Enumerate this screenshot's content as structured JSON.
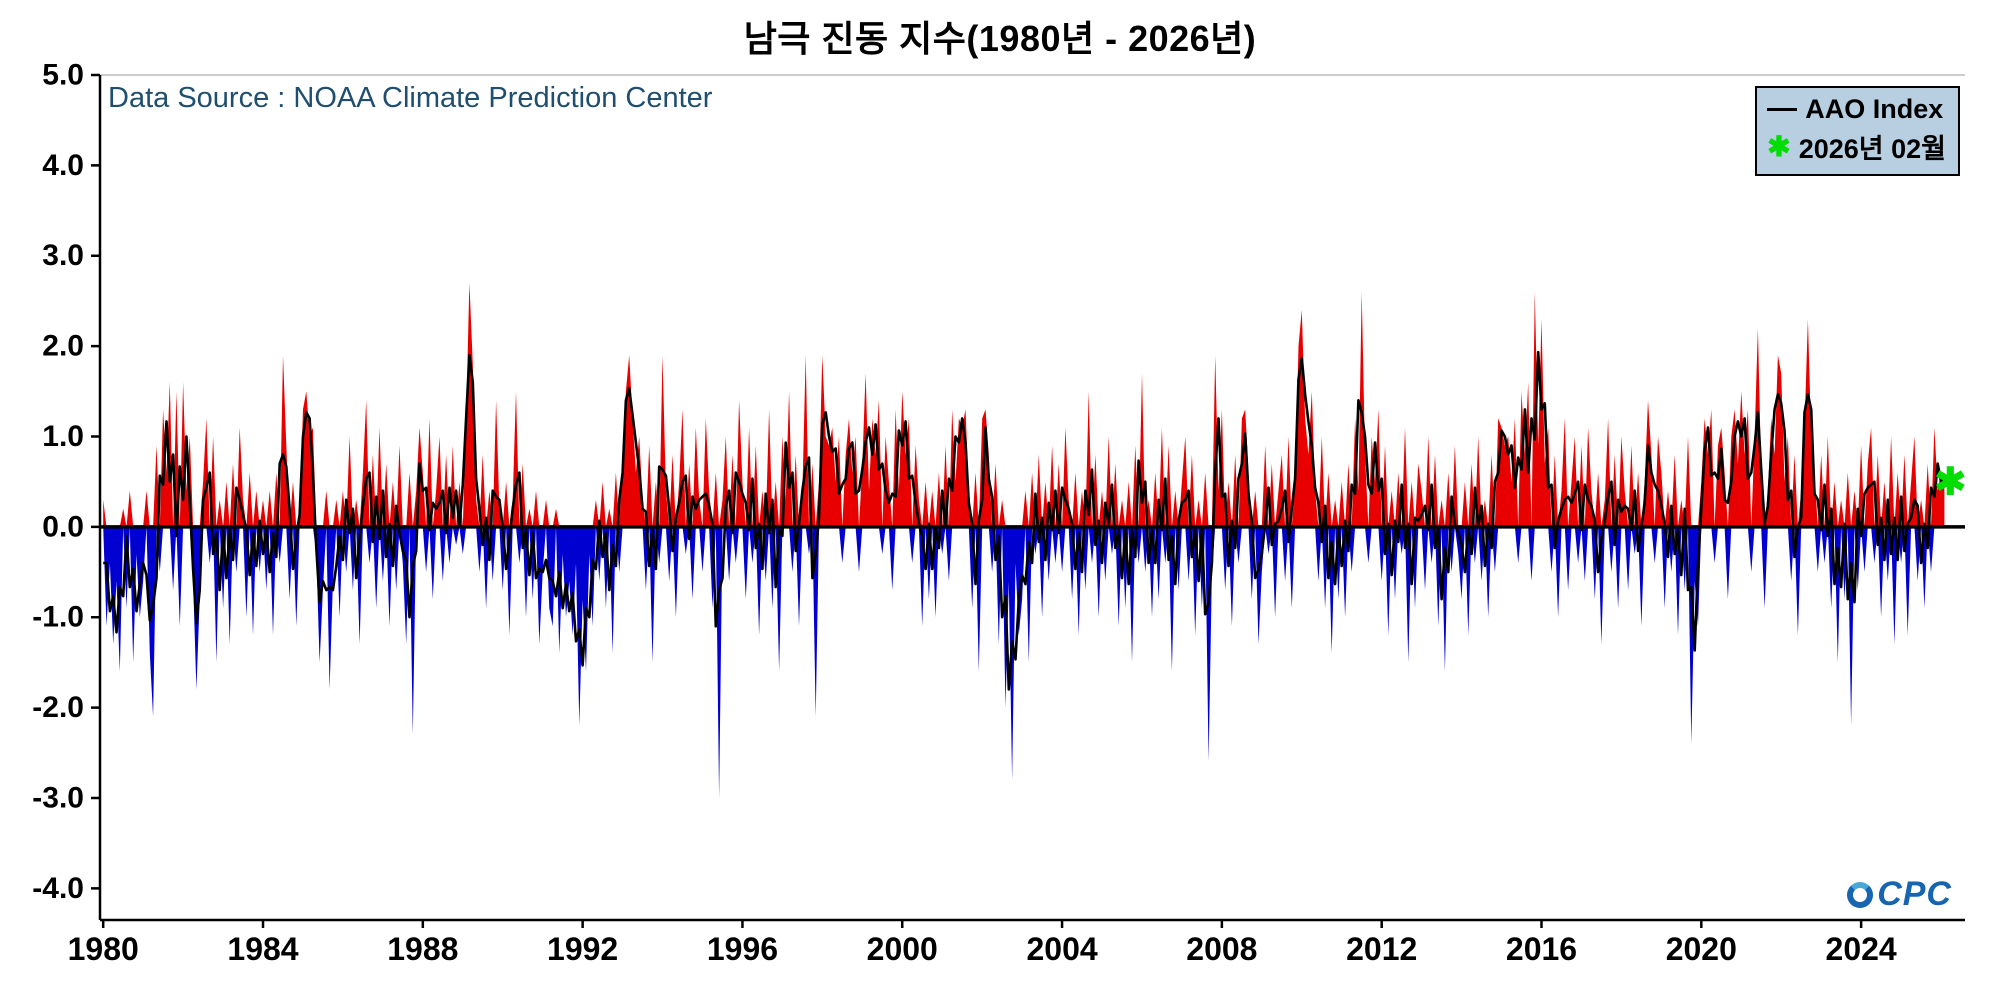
{
  "title": "남극 진동 지수(1980년 - 2026년)",
  "annotations": {
    "data_source": "Data Source : NOAA Climate Prediction Center"
  },
  "legend": {
    "background": "#b8cfe2",
    "items": [
      {
        "icon": "line-sample-icon",
        "label": "AAO Index",
        "color": "#000000"
      },
      {
        "icon": "asterisk-icon",
        "label": "2026년 02월",
        "color": "#00dd00"
      }
    ]
  },
  "logo": {
    "text": "CPC",
    "color": "#1565b0"
  },
  "chart_data": {
    "type": "area",
    "title": "남극 진동 지수(1980년 - 2026년)",
    "xlabel": "",
    "ylabel": "",
    "x_start_year": 1980,
    "x_start_month": 1,
    "frequency": "monthly",
    "xlim": [
      1979.92,
      2026.6
    ],
    "ylim": [
      -4.35,
      5.0
    ],
    "yticks": [
      5.0,
      4.0,
      3.0,
      2.0,
      1.0,
      0.0,
      -1.0,
      -2.0,
      -3.0,
      -4.0
    ],
    "ytick_labels": [
      "5.0",
      "4.0",
      "3.0",
      "2.0",
      "1.0",
      "0.0",
      "-1.0",
      "-2.0",
      "-3.0",
      "-4.0"
    ],
    "xticks": [
      1980,
      1984,
      1988,
      1992,
      1996,
      2000,
      2004,
      2008,
      2012,
      2016,
      2020,
      2024
    ],
    "xtick_labels": [
      "1980",
      "1984",
      "1988",
      "1992",
      "1996",
      "2000",
      "2004",
      "2008",
      "2012",
      "2016",
      "2020",
      "2024"
    ],
    "positive_color": "#e80000",
    "negative_color": "#0000d0",
    "line_color": "#000000",
    "zero_line_color": "#000000",
    "smoothing_window": 3,
    "series_name": "AAO Index",
    "marker": {
      "label": "2026년 02월",
      "value": 0.5,
      "color": "#00dd00"
    },
    "values": [
      0.3,
      -1.1,
      -0.4,
      -1.3,
      -0.6,
      -1.6,
      0.2,
      -0.9,
      0.4,
      -1.5,
      -0.3,
      -1.0,
      -0.6,
      0.4,
      -1.4,
      -2.1,
      0.9,
      -0.5,
      1.3,
      0.6,
      1.6,
      -0.7,
      1.5,
      -1.1,
      1.6,
      0.4,
      1.0,
      -0.6,
      -1.8,
      -0.8,
      0.5,
      1.2,
      -0.4,
      1.0,
      -1.5,
      0.3,
      -0.9,
      0.5,
      -1.3,
      0.7,
      -0.5,
      1.1,
      0.3,
      -1.0,
      0.6,
      -1.2,
      0.4,
      -0.5,
      0.3,
      -0.7,
      0.4,
      -1.2,
      0.6,
      -0.4,
      1.9,
      0.9,
      -0.8,
      0.5,
      -1.1,
      0.2,
      1.3,
      1.5,
      1.0,
      1.1,
      -0.3,
      -1.5,
      -0.7,
      0.4,
      -1.8,
      -0.6,
      0.3,
      -1.0,
      0.4,
      -0.5,
      1.0,
      -0.7,
      0.3,
      -1.3,
      0.6,
      1.4,
      -0.4,
      0.8,
      -0.9,
      1.1,
      -0.6,
      0.7,
      -1.1,
      0.5,
      -0.7,
      0.9,
      -0.4,
      -1.3,
      0.6,
      -2.3,
      0.4,
      1.1,
      0.6,
      -0.5,
      1.2,
      -0.8,
      0.4,
      1.0,
      -0.6,
      0.8,
      -0.4,
      0.9,
      -0.2,
      0.5,
      -0.3,
      1.2,
      2.7,
      1.8,
      0.3,
      -0.5,
      0.8,
      -0.9,
      0.4,
      -0.6,
      1.4,
      0.2,
      -0.7,
      0.5,
      -1.2,
      0.3,
      1.5,
      -0.4,
      0.7,
      -1.0,
      0.2,
      -0.8,
      0.4,
      -1.3,
      -0.5,
      0.3,
      -0.9,
      -1.1,
      0.2,
      -1.4,
      -0.3,
      -1.0,
      -0.6,
      -1.2,
      -0.4,
      -2.2,
      -0.8,
      -1.6,
      -0.3,
      -1.1,
      0.3,
      -0.6,
      0.5,
      -0.9,
      0.2,
      -1.4,
      0.6,
      -0.5,
      0.8,
      1.5,
      1.9,
      1.2,
      0.6,
      1.0,
      0.3,
      -0.7,
      0.9,
      -1.5,
      0.5,
      -0.4,
      1.9,
      0.4,
      -0.6,
      0.8,
      -1.0,
      0.5,
      1.3,
      -0.3,
      0.7,
      -0.8,
      1.1,
      0.3,
      -0.5,
      1.2,
      0.4,
      -0.9,
      0.6,
      -3.0,
      0.3,
      1.0,
      -0.6,
      0.8,
      -0.4,
      1.4,
      0.5,
      -0.8,
      1.1,
      -0.4,
      0.9,
      -1.2,
      0.4,
      -0.6,
      1.3,
      -0.9,
      0.5,
      -1.6,
      1.0,
      0.3,
      1.5,
      -0.5,
      0.8,
      -1.1,
      0.4,
      1.9,
      -0.3,
      0.7,
      -2.1,
      0.5,
      1.9,
      1.0,
      0.9,
      1.1,
      0.5,
      1.0,
      -0.4,
      0.8,
      1.2,
      0.6,
      1.0,
      -0.5,
      0.7,
      1.7,
      0.4,
      1.2,
      0.8,
      1.4,
      -0.3,
      1.0,
      0.5,
      -0.7,
      1.3,
      0.4,
      1.5,
      0.8,
      1.2,
      -0.4,
      0.9,
      0.3,
      -1.1,
      0.5,
      -0.8,
      0.4,
      -1.0,
      0.6,
      -0.3,
      0.9,
      -0.6,
      1.3,
      0.5,
      1.2,
      1.1,
      1.3,
      0.4,
      -0.9,
      0.6,
      -1.6,
      1.2,
      1.3,
      0.8,
      -0.5,
      0.7,
      -1.3,
      0.3,
      -2.0,
      -0.6,
      -2.8,
      -0.4,
      -1.2,
      -0.8,
      0.4,
      -1.5,
      0.6,
      -0.3,
      0.8,
      -1.0,
      0.5,
      -0.6,
      0.9,
      -0.4,
      0.7,
      -0.5,
      1.1,
      0.3,
      -0.8,
      0.6,
      -1.2,
      0.4,
      -0.7,
      1.5,
      -0.4,
      0.8,
      -1.0,
      0.4,
      -0.6,
      1.0,
      -0.3,
      0.7,
      -1.1,
      0.3,
      -0.9,
      0.5,
      -1.5,
      0.9,
      -0.4,
      1.7,
      -0.5,
      0.3,
      -1.0,
      0.6,
      -0.8,
      1.1,
      -0.4,
      0.9,
      -1.6,
      0.4,
      -0.7,
      0.5,
      1.0,
      -0.6,
      0.8,
      -1.2,
      0.3,
      -0.9,
      0.6,
      -2.6,
      -0.5,
      1.9,
      0.4,
      1.3,
      -0.7,
      0.5,
      -1.1,
      0.8,
      -0.4,
      1.2,
      1.3,
      0.6,
      -0.8,
      0.4,
      -1.3,
      -0.5,
      0.9,
      -0.3,
      0.7,
      -1.0,
      0.4,
      0.8,
      -0.6,
      1.0,
      -0.9,
      0.5,
      2.0,
      2.4,
      1.2,
      0.8,
      1.5,
      0.4,
      -0.6,
      1.0,
      -0.9,
      0.6,
      -1.4,
      0.3,
      -0.8,
      0.5,
      -1.0,
      0.7,
      -0.5,
      1.2,
      0.4,
      2.6,
      0.8,
      -0.4,
      1.0,
      0.5,
      1.3,
      -0.6,
      0.9,
      -1.2,
      0.4,
      -0.8,
      0.6,
      -0.3,
      1.1,
      -1.5,
      0.5,
      -0.9,
      0.7,
      0.4,
      -0.7,
      1.0,
      -0.4,
      0.8,
      -1.1,
      0.3,
      -1.6,
      0.6,
      -0.5,
      0.9,
      -0.3,
      -0.8,
      0.5,
      -1.2,
      0.7,
      -0.4,
      1.0,
      -0.6,
      0.3,
      -1.0,
      0.8,
      -0.5,
      1.2,
      1.1,
      0.9,
      1.0,
      0.5,
      1.2,
      -0.4,
      1.5,
      0.8,
      1.6,
      -0.6,
      2.6,
      0.9,
      2.3,
      0.7,
      1.1,
      -0.5,
      0.8,
      -1.0,
      0.4,
      1.2,
      -0.7,
      0.5,
      1.0,
      -0.4,
      0.9,
      -0.6,
      1.1,
      0.4,
      -0.8,
      0.6,
      -1.3,
      0.3,
      1.2,
      -0.5,
      0.8,
      -0.9,
      1.0,
      0.4,
      -0.7,
      0.9,
      -0.3,
      0.6,
      -1.1,
      0.5,
      1.4,
      0.8,
      -0.4,
      1.0,
      0.6,
      -0.9,
      0.4,
      -0.5,
      0.8,
      -1.2,
      0.3,
      -0.7,
      1.0,
      -2.4,
      -0.6,
      -1.1,
      0.5,
      1.2,
      0.8,
      1.3,
      -0.4,
      0.9,
      1.1,
      0.6,
      -0.8,
      1.0,
      1.3,
      0.7,
      1.5,
      0.8,
      1.3,
      -0.5,
      1.0,
      2.2,
      0.6,
      -0.9,
      0.4,
      1.2,
      0.8,
      1.9,
      1.7,
      0.5,
      1.0,
      -0.6,
      0.8,
      -1.2,
      0.4,
      1.1,
      2.3,
      1.0,
      0.6,
      -0.5,
      0.8,
      -0.4,
      1.0,
      -0.9,
      0.5,
      -1.5,
      0.3,
      -0.8,
      0.6,
      -2.2,
      0.4,
      -0.7,
      0.9,
      -0.5,
      0.7,
      1.1,
      -0.4,
      0.8,
      -1.0,
      0.5,
      -0.6,
      1.0,
      -1.3,
      0.6,
      -0.4,
      0.8,
      -1.2,
      0.5,
      1.0,
      -0.6,
      0.3,
      -0.9,
      0.7,
      -0.5,
      1.1,
      0.4,
      0.6,
      0.5
    ]
  }
}
